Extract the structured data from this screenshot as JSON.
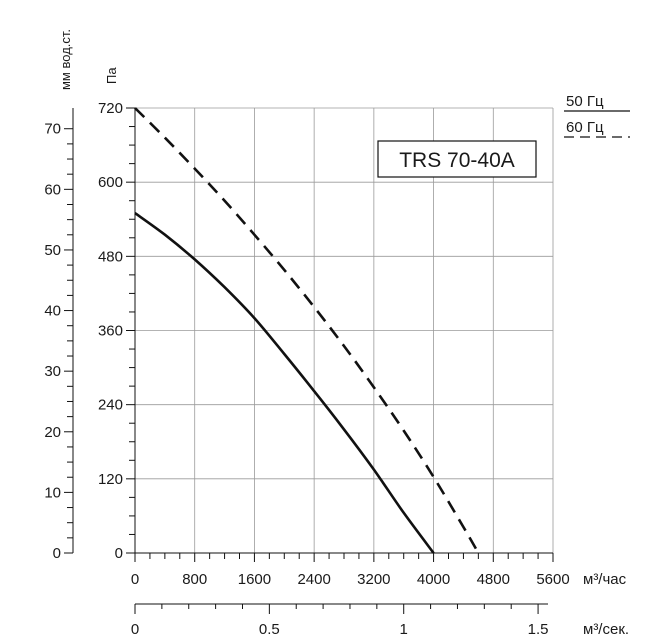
{
  "chart_data": {
    "type": "line",
    "title": "TRS 70-40A",
    "xlabel_primary": "м³/час",
    "xlabel_secondary": "м³/сек.",
    "ylabel_pa": "Па",
    "ylabel_mm": "мм вод.ст.",
    "x_ticks_primary": [
      0,
      800,
      1600,
      2400,
      3200,
      4000,
      4800,
      5600
    ],
    "x_tick_labels_primary": [
      "0",
      "800",
      "1600",
      "2400",
      "3200",
      "4000",
      "4800",
      "5600"
    ],
    "x_ticks_secondary": [
      0,
      0.5,
      1,
      1.5
    ],
    "x_tick_labels_secondary": [
      "0",
      "0.5",
      "1",
      "1.5"
    ],
    "y_ticks_pa": [
      0,
      120,
      240,
      360,
      480,
      600,
      720
    ],
    "y_tick_labels_pa": [
      "0",
      "120",
      "240",
      "360",
      "480",
      "600",
      "720"
    ],
    "y_ticks_mm": [
      0,
      10,
      20,
      30,
      40,
      50,
      60,
      70
    ],
    "y_tick_labels_mm": [
      "0",
      "10",
      "20",
      "30",
      "40",
      "50",
      "60",
      "70"
    ],
    "xlim": [
      0,
      5600
    ],
    "ylim": [
      0,
      720
    ],
    "grid": true,
    "legend_position": "top-right",
    "series": [
      {
        "name": "50 Гц",
        "style": "solid",
        "x": [
          0,
          400,
          800,
          1200,
          1600,
          2000,
          2400,
          2800,
          3200,
          3600,
          4000
        ],
        "y": [
          550,
          515,
          475,
          430,
          380,
          322,
          262,
          200,
          135,
          65,
          0
        ]
      },
      {
        "name": "60 Гц",
        "style": "dashed",
        "x": [
          0,
          400,
          800,
          1200,
          1600,
          2000,
          2400,
          2800,
          3200,
          3600,
          4000,
          4400,
          4600
        ],
        "y": [
          720,
          672,
          622,
          570,
          515,
          458,
          398,
          335,
          268,
          198,
          123,
          42,
          0
        ]
      }
    ]
  }
}
